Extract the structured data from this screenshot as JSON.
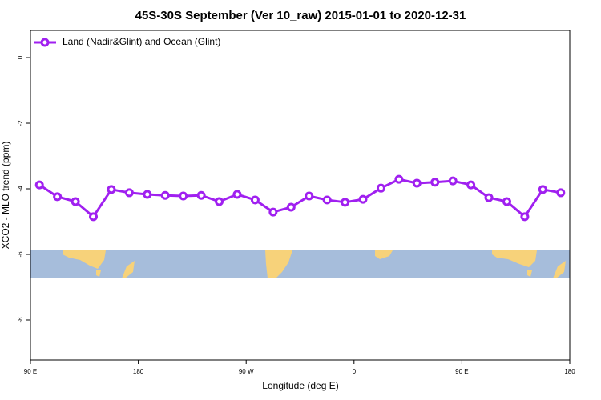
{
  "chart_data": {
    "type": "line",
    "title": "45S-30S September (Ver 10_raw)   2015-01-01 to 2020-12-31",
    "x_label": "Longitude (deg E)",
    "y_label": "XCO2 - MLO trend (ppm)",
    "x": [
      97.5,
      112.5,
      127.5,
      142.5,
      157.5,
      172.5,
      187.5,
      202.5,
      217.5,
      232.5,
      247.5,
      262.5,
      277.5,
      292.5,
      307.5,
      322.5,
      337.5,
      352.5,
      367.5,
      382.5,
      397.5,
      412.5,
      427.5,
      442.5,
      457.5,
      472.5,
      487.5,
      502.5,
      517.5,
      532.5
    ],
    "series": [
      {
        "name": "Land (Nadir&Glint) and Ocean (Glint)",
        "color": "#a020f0",
        "values": [
          -3.88,
          -4.24,
          -4.39,
          -4.85,
          -4.02,
          -4.12,
          -4.17,
          -4.2,
          -4.22,
          -4.2,
          -4.39,
          -4.17,
          -4.34,
          -4.71,
          -4.56,
          -4.22,
          -4.34,
          -4.41,
          -4.32,
          -3.98,
          -3.71,
          -3.83,
          -3.8,
          -3.76,
          -3.88,
          -4.27,
          -4.39,
          -4.85,
          -4.02,
          -4.12
        ]
      }
    ],
    "xlim": [
      90,
      540
    ],
    "xticks": [
      {
        "value": 90,
        "label": "90 E"
      },
      180,
      {
        "value": 270,
        "label": "90 W"
      },
      {
        "value": 360,
        "label": "0"
      },
      {
        "value": 450,
        "label": "90 E"
      },
      {
        "value": 540,
        "label": "180"
      }
    ],
    "ylim": [
      -9.22,
      0.83
    ],
    "yticks": [
      0,
      -2,
      -4,
      -6,
      -8
    ],
    "legend": "top-left"
  }
}
